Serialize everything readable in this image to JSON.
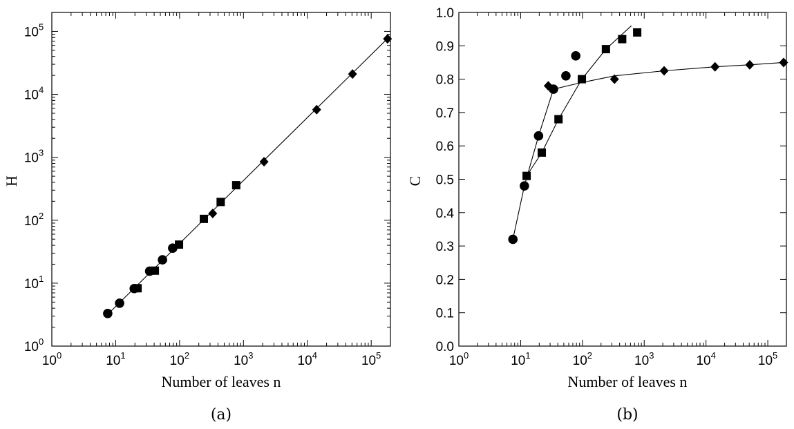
{
  "chart_data": [
    {
      "type": "scatter",
      "panel_caption": "(a)",
      "xlabel": "Number of leaves  n",
      "ylabel": "H",
      "xscale": "log",
      "yscale": "log",
      "xlim": [
        1,
        200000
      ],
      "ylim": [
        1,
        200000
      ],
      "x_ticks": [
        {
          "base": "10",
          "exp": "0",
          "value": 1
        },
        {
          "base": "10",
          "exp": "1",
          "value": 10
        },
        {
          "base": "10",
          "exp": "2",
          "value": 100
        },
        {
          "base": "10",
          "exp": "3",
          "value": 1000
        },
        {
          "base": "10",
          "exp": "4",
          "value": 10000
        },
        {
          "base": "10",
          "exp": "5",
          "value": 100000
        }
      ],
      "y_ticks": [
        {
          "base": "10",
          "exp": "0",
          "value": 1
        },
        {
          "base": "10",
          "exp": "1",
          "value": 10
        },
        {
          "base": "10",
          "exp": "2",
          "value": 100
        },
        {
          "base": "10",
          "exp": "3",
          "value": 1000
        },
        {
          "base": "10",
          "exp": "4",
          "value": 10000
        },
        {
          "base": "10",
          "exp": "5",
          "value": 100000
        }
      ],
      "series": [
        {
          "marker": "circle",
          "x": [
            7.5,
            11.5,
            19.5,
            34,
            54,
            78
          ],
          "y": [
            3.3,
            4.8,
            8.2,
            15.5,
            23.5,
            36
          ]
        },
        {
          "marker": "square",
          "x": [
            22,
            41,
            98,
            240,
            440,
            770
          ],
          "y": [
            8.3,
            15.8,
            41,
            105,
            195,
            360
          ]
        },
        {
          "marker": "diamond",
          "x": [
            330,
            2100,
            14000,
            51000,
            180000
          ],
          "y": [
            128,
            850,
            5700,
            21000,
            76000
          ]
        }
      ],
      "fit_line": {
        "x": [
          7.5,
          180000
        ],
        "y": [
          3.2,
          77000
        ]
      }
    },
    {
      "type": "line",
      "panel_caption": "(b)",
      "xlabel": "Number of leaves   n",
      "ylabel": "C",
      "xscale": "log",
      "yscale": "linear",
      "xlim": [
        1,
        200000
      ],
      "ylim": [
        0.0,
        1.0
      ],
      "x_ticks": [
        {
          "base": "10",
          "exp": "0",
          "value": 1
        },
        {
          "base": "10",
          "exp": "1",
          "value": 10
        },
        {
          "base": "10",
          "exp": "2",
          "value": 100
        },
        {
          "base": "10",
          "exp": "3",
          "value": 1000
        },
        {
          "base": "10",
          "exp": "4",
          "value": 10000
        },
        {
          "base": "10",
          "exp": "5",
          "value": 100000
        }
      ],
      "y_ticks": [
        "0.0",
        "0.1",
        "0.2",
        "0.3",
        "0.4",
        "0.5",
        "0.6",
        "0.7",
        "0.8",
        "0.9",
        "1.0"
      ],
      "series": [
        {
          "marker": "circle",
          "x": [
            7.5,
            11.5,
            19.5,
            34,
            54,
            78
          ],
          "y": [
            0.32,
            0.48,
            0.63,
            0.77,
            0.81,
            0.87
          ]
        },
        {
          "marker": "square",
          "x": [
            12.5,
            22,
            41,
            98,
            240,
            440,
            770
          ],
          "y": [
            0.51,
            0.58,
            0.68,
            0.8,
            0.89,
            0.92,
            0.94
          ]
        },
        {
          "marker": "diamond",
          "x": [
            28,
            330,
            2100,
            14000,
            51000,
            180000
          ],
          "y": [
            0.78,
            0.8,
            0.825,
            0.837,
            0.843,
            0.85
          ]
        }
      ],
      "lines": [
        {
          "x": [
            7.5,
            11.5,
            19.5,
            34
          ],
          "y": [
            0.32,
            0.48,
            0.63,
            0.77
          ]
        },
        {
          "x": [
            12.5,
            22,
            41,
            98,
            240,
            620
          ],
          "y": [
            0.51,
            0.58,
            0.68,
            0.8,
            0.89,
            0.96
          ]
        },
        {
          "x": [
            28,
            34,
            98,
            330,
            2100,
            14000,
            51000,
            180000
          ],
          "y": [
            0.78,
            0.77,
            0.79,
            0.81,
            0.825,
            0.837,
            0.843,
            0.85
          ]
        }
      ]
    }
  ]
}
